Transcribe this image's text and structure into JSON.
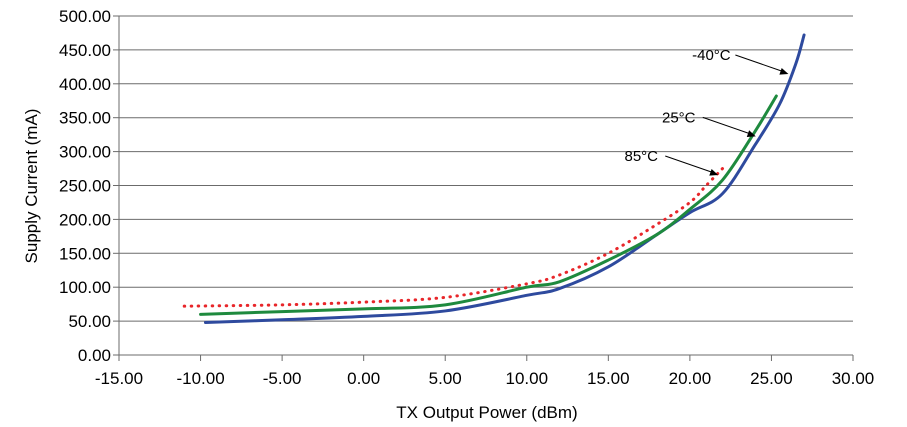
{
  "chart_data": {
    "type": "line",
    "title": "",
    "xlabel": "TX Output Power (dBm)",
    "ylabel": "Supply Current (mA)",
    "xlim": [
      -15,
      30
    ],
    "ylim": [
      0,
      500
    ],
    "x_ticks": [
      -15,
      -10,
      -5,
      0,
      5,
      10,
      15,
      20,
      25,
      30
    ],
    "y_ticks": [
      0,
      50,
      100,
      150,
      200,
      250,
      300,
      350,
      400,
      450,
      500
    ],
    "x_tick_labels": [
      "-15.00",
      "-10.00",
      "-5.00",
      "0.00",
      "5.00",
      "10.00",
      "15.00",
      "20.00",
      "25.00",
      "30.00"
    ],
    "y_tick_labels": [
      "0.00",
      "50.00",
      "100.00",
      "150.00",
      "200.00",
      "250.00",
      "300.00",
      "350.00",
      "400.00",
      "450.00",
      "500.00"
    ],
    "grid": "horizontal",
    "legend": "none",
    "series": [
      {
        "name": "-40°C",
        "color": "#2e4a9e",
        "style": "solid",
        "points": [
          [
            -9.7,
            48
          ],
          [
            -5,
            52
          ],
          [
            0,
            57
          ],
          [
            5,
            65
          ],
          [
            10,
            88
          ],
          [
            12,
            98
          ],
          [
            15,
            130
          ],
          [
            18,
            178
          ],
          [
            20,
            210
          ],
          [
            22,
            238
          ],
          [
            24,
            310
          ],
          [
            25.5,
            370
          ],
          [
            26.5,
            430
          ],
          [
            27,
            472
          ]
        ]
      },
      {
        "name": "25°C",
        "color": "#1e8a3e",
        "style": "solid",
        "points": [
          [
            -10,
            60
          ],
          [
            -5,
            64
          ],
          [
            0,
            68
          ],
          [
            5,
            74
          ],
          [
            10,
            100
          ],
          [
            12,
            108
          ],
          [
            15,
            140
          ],
          [
            18,
            178
          ],
          [
            20,
            215
          ],
          [
            22,
            258
          ],
          [
            24,
            330
          ],
          [
            25.3,
            382
          ]
        ]
      },
      {
        "name": "85°C",
        "color": "#e8262a",
        "style": "dotted",
        "points": [
          [
            -11,
            72
          ],
          [
            -5,
            74
          ],
          [
            0,
            78
          ],
          [
            5,
            85
          ],
          [
            10,
            105
          ],
          [
            12,
            118
          ],
          [
            15,
            150
          ],
          [
            18,
            193
          ],
          [
            20,
            225
          ],
          [
            21,
            250
          ],
          [
            22,
            275
          ]
        ]
      }
    ],
    "annotations": [
      {
        "text": "-40°C",
        "series": "-40°C",
        "x": 26.1,
        "y": 413
      },
      {
        "text": "25°C",
        "series": "25°C",
        "x": 24.1,
        "y": 321
      },
      {
        "text": "85°C",
        "series": "85°C",
        "x": 21.8,
        "y": 264
      }
    ]
  }
}
